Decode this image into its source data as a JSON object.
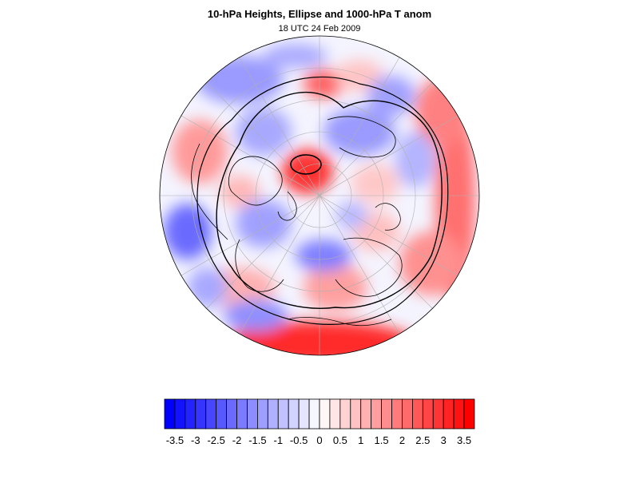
{
  "header": {
    "title": "10-hPa Heights, Ellipse and 1000-hPa T anom",
    "subtitle": "18 UTC 24 Feb 2009"
  },
  "map": {
    "projection": "north-polar-stereographic",
    "field": "1000-hPa temperature anomaly",
    "contours": [
      "10-hPa heights",
      "ellipse"
    ],
    "colors": {
      "low": "#0000ff",
      "mid": "#ffffff",
      "high": "#ff0000",
      "coast": "#000000"
    }
  },
  "colorbar": {
    "min": -3.75,
    "max": 3.75,
    "step": 0.25,
    "tick_labels": [
      "-3.5",
      "-3",
      "-2.5",
      "-2",
      "-1.5",
      "-1",
      "-0.5",
      "0",
      "0.5",
      "1",
      "1.5",
      "2",
      "2.5",
      "3",
      "3.5"
    ]
  }
}
